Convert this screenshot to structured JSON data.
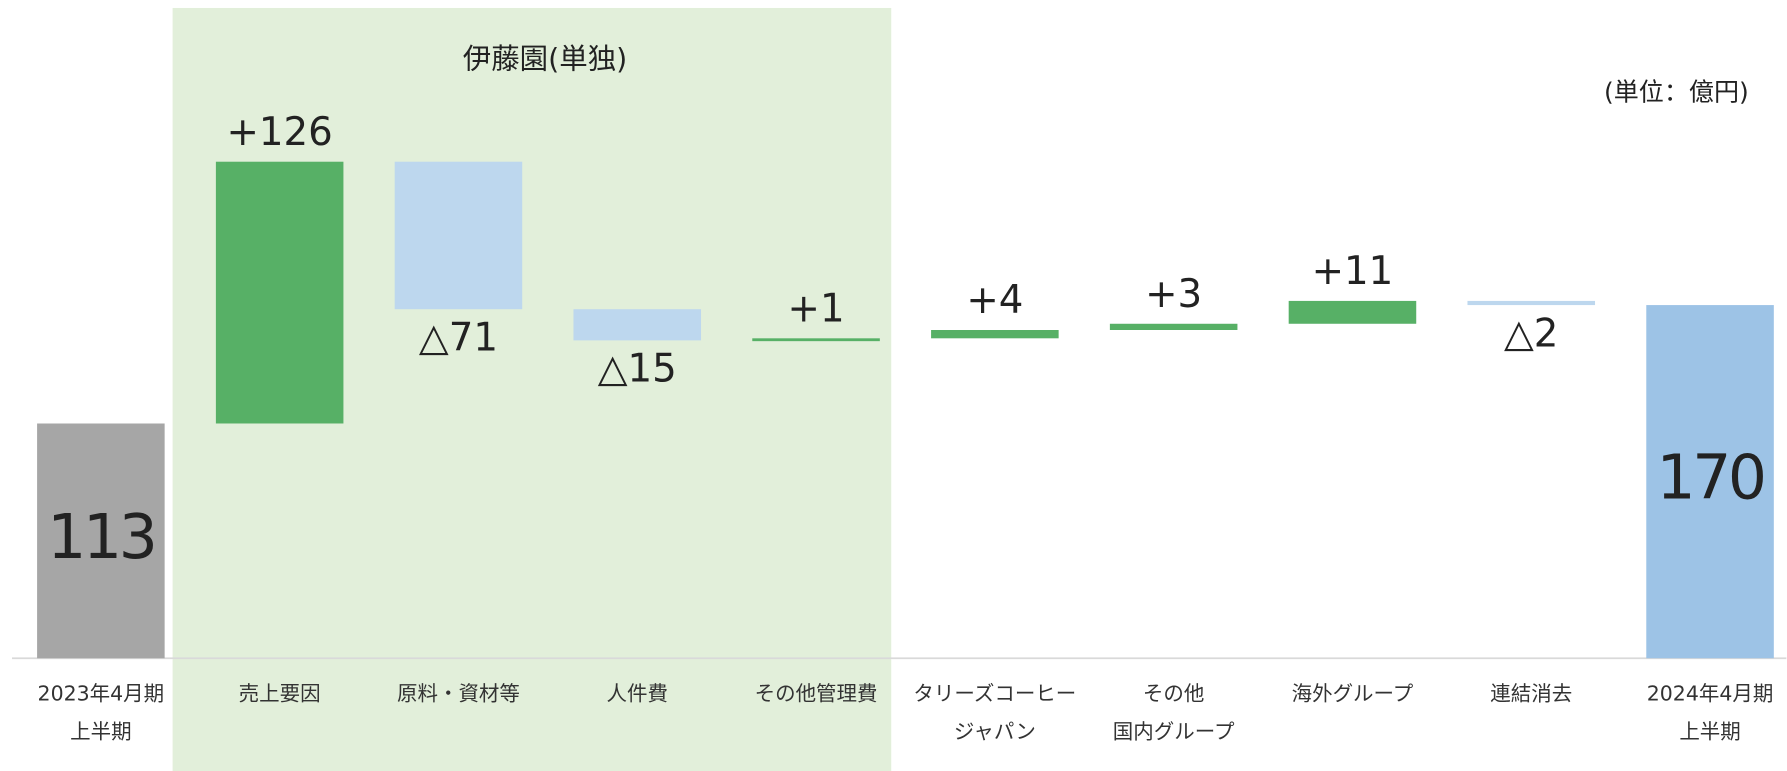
{
  "chart_data": {
    "type": "waterfall",
    "group_label": "伊藤園(単独)",
    "unit_label": "(単位：億円)",
    "categories": [
      [
        "2023年4月期",
        "上半期"
      ],
      [
        "売上要因"
      ],
      [
        "原料・資材等"
      ],
      [
        "人件費"
      ],
      [
        "その他管理費"
      ],
      [
        "タリーズコーヒー",
        "ジャパン"
      ],
      [
        "その他",
        "国内グループ"
      ],
      [
        "海外グループ"
      ],
      [
        "連結消去"
      ],
      [
        "2024年4月期",
        "上半期"
      ]
    ],
    "values": [
      113,
      126,
      -71,
      -15,
      1,
      4,
      3,
      11,
      -2,
      170
    ],
    "value_labels": [
      "113",
      "+126",
      "△71",
      "△15",
      "+1",
      "+4",
      "+3",
      "+11",
      "△2",
      "170"
    ],
    "kinds": [
      "total",
      "delta",
      "delta",
      "delta",
      "delta",
      "delta",
      "delta",
      "delta",
      "delta",
      "total"
    ],
    "colors": [
      "#a6a6a6",
      "#57b066",
      "#bdd7ee",
      "#bdd7ee",
      "#57b066",
      "#57b066",
      "#57b066",
      "#57b066",
      "#bdd7ee",
      "#9dc3e6"
    ]
  }
}
